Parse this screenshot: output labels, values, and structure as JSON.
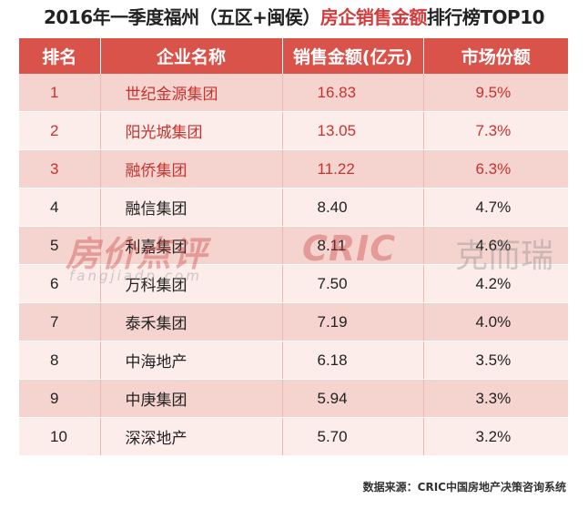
{
  "title": {
    "prefix": "2016年一季度福州（五区+闽侯）",
    "highlight": "房企销售金额",
    "suffix": "排行榜TOP10"
  },
  "table": {
    "headers": [
      "排名",
      "企业名称",
      "销售金额(亿元)",
      "市场份额"
    ],
    "rows": [
      {
        "rank": "1",
        "company": "世纪金源集团",
        "amount": "16.83",
        "share": "9.5%"
      },
      {
        "rank": "2",
        "company": "阳光城集团",
        "amount": "13.05",
        "share": "7.3%"
      },
      {
        "rank": "3",
        "company": "融侨集团",
        "amount": "11.22",
        "share": "6.3%"
      },
      {
        "rank": "4",
        "company": "融信集团",
        "amount": "8.40",
        "share": "4.7%"
      },
      {
        "rank": "5",
        "company": "利嘉集团",
        "amount": "8.11",
        "share": "4.6%"
      },
      {
        "rank": "6",
        "company": "万科集团",
        "amount": "7.50",
        "share": "4.2%"
      },
      {
        "rank": "7",
        "company": "泰禾集团",
        "amount": "7.19",
        "share": "4.0%"
      },
      {
        "rank": "8",
        "company": "中海地产",
        "amount": "6.18",
        "share": "3.5%"
      },
      {
        "rank": "9",
        "company": "中庚集团",
        "amount": "5.94",
        "share": "3.3%"
      },
      {
        "rank": "10",
        "company": "深深地产",
        "amount": "5.70",
        "share": "3.2%"
      }
    ]
  },
  "watermarks": {
    "left": "房价点评",
    "left_sub": "fangjiadp.com",
    "right_logo": "CRIC",
    "right_cn": "克而瑞"
  },
  "source": "数据来源：CRIC中国房地产决策咨询系统",
  "colors": {
    "header_bg": "#d9534a",
    "row_odd": "#f5d4cf",
    "row_even": "#fcecea",
    "highlight_text": "#c8322e"
  }
}
